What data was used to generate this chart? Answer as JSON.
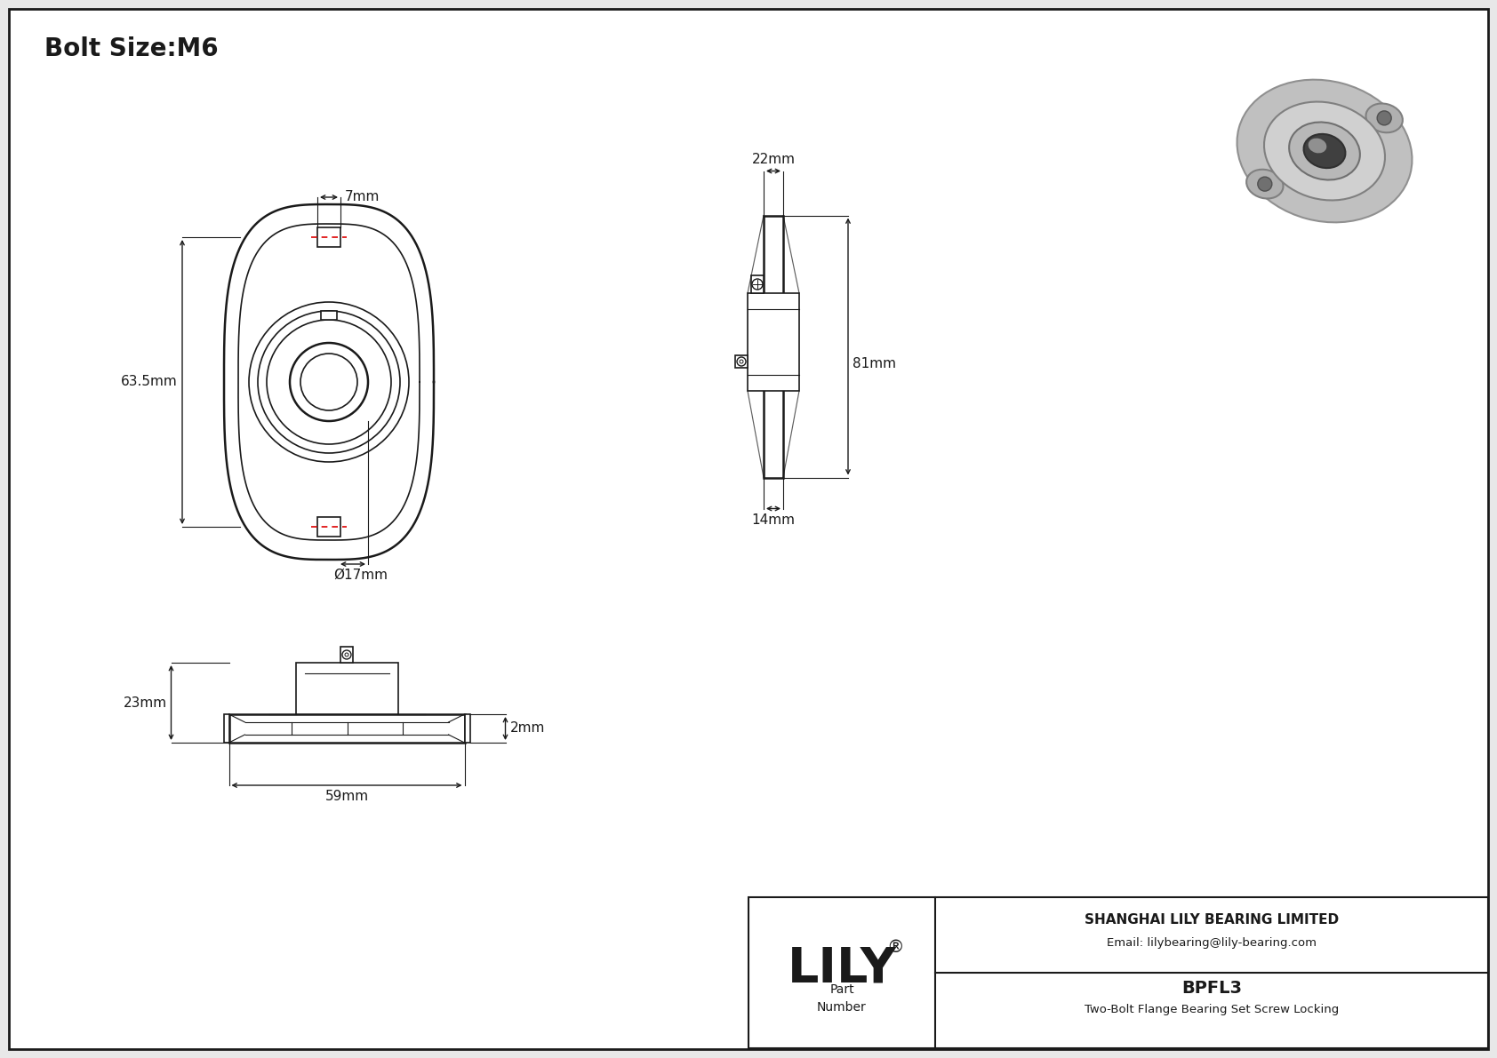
{
  "title": "Bolt Size:M6",
  "background_color": "#e8e8e8",
  "drawing_bg": "#ffffff",
  "line_color": "#1a1a1a",
  "red_dash_color": "#dd0000",
  "dimensions": {
    "bolt_hole_diameter": "7mm",
    "total_height": "63.5mm",
    "bore_diameter": "Ø17mm",
    "side_width": "22mm",
    "side_height": "81mm",
    "side_bottom": "14mm",
    "front_height": "23mm",
    "front_width": "59mm",
    "front_lip": "2mm"
  },
  "title_fontsize": 20,
  "dim_fontsize": 11,
  "company_tagline": "SHANGHAI LILY BEARING LIMITED",
  "company_email": "Email: lilybearing@lily-bearing.com",
  "part_number": "BPFL3",
  "part_desc": "Two-Bolt Flange Bearing Set Screw Locking"
}
